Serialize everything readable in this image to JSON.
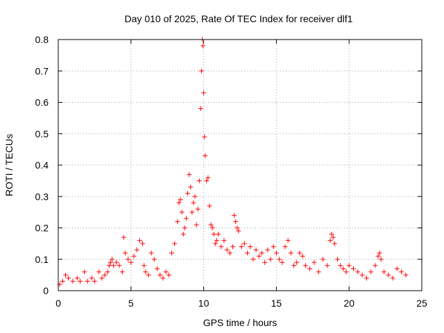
{
  "chart_data": {
    "type": "scatter",
    "title": "Day 010 of 2025, Rate Of TEC Index for receiver dlf1",
    "xlabel": "GPS time / hours",
    "ylabel": "ROTI / TECUs",
    "xlim": [
      0,
      25
    ],
    "ylim": [
      0,
      0.8
    ],
    "xticks": [
      "0",
      "5",
      "10",
      "15",
      "20",
      "25"
    ],
    "yticks": [
      "0",
      "0.1",
      "0.2",
      "0.3",
      "0.4",
      "0.5",
      "0.6",
      "0.7",
      "0.8"
    ],
    "grid": true,
    "marker": "plus",
    "marker_color": "#ff0000",
    "series": [
      {
        "x": [
          0.1,
          0.3,
          0.5,
          0.7,
          1.0,
          1.3,
          1.5,
          1.8,
          2.0,
          2.3,
          2.5,
          2.8,
          3.0,
          3.2,
          3.4,
          3.5,
          3.6,
          3.7,
          3.8,
          4.0,
          4.2,
          4.4,
          4.5,
          4.6,
          4.8,
          5.0,
          5.2,
          5.4,
          5.6,
          5.8,
          5.9,
          6.0,
          6.2,
          6.4,
          6.6,
          6.8,
          7.0,
          7.2,
          7.4,
          7.6,
          7.8,
          8.0,
          8.2,
          8.3,
          8.4,
          8.5,
          8.6,
          8.7,
          8.8,
          8.9,
          9.0,
          9.1,
          9.2,
          9.3,
          9.4,
          9.5,
          9.6,
          9.7,
          9.8,
          9.85,
          9.9,
          9.95,
          10.0,
          10.05,
          10.1,
          10.2,
          10.3,
          10.4,
          10.5,
          10.6,
          10.7,
          10.8,
          10.9,
          11.0,
          11.2,
          11.4,
          11.6,
          11.8,
          12.0,
          12.1,
          12.2,
          12.3,
          12.4,
          12.6,
          12.8,
          13.0,
          13.2,
          13.4,
          13.6,
          13.8,
          14.0,
          14.2,
          14.4,
          14.6,
          14.8,
          15.0,
          15.2,
          15.4,
          15.6,
          15.8,
          16.0,
          16.2,
          16.4,
          16.6,
          16.8,
          17.0,
          17.3,
          17.6,
          17.9,
          18.2,
          18.5,
          18.7,
          18.8,
          18.9,
          19.0,
          19.2,
          19.4,
          19.6,
          19.8,
          20.0,
          20.3,
          20.6,
          20.9,
          21.2,
          21.5,
          21.8,
          22.0,
          22.1,
          22.2,
          22.4,
          22.7,
          23.0,
          23.3,
          23.6,
          23.9
        ],
        "y": [
          0.02,
          0.03,
          0.05,
          0.04,
          0.03,
          0.04,
          0.03,
          0.06,
          0.03,
          0.04,
          0.03,
          0.06,
          0.04,
          0.05,
          0.06,
          0.08,
          0.09,
          0.1,
          0.08,
          0.09,
          0.08,
          0.06,
          0.17,
          0.12,
          0.1,
          0.09,
          0.11,
          0.13,
          0.16,
          0.15,
          0.08,
          0.06,
          0.05,
          0.12,
          0.1,
          0.07,
          0.05,
          0.04,
          0.06,
          0.05,
          0.12,
          0.15,
          0.22,
          0.28,
          0.29,
          0.25,
          0.18,
          0.2,
          0.23,
          0.31,
          0.37,
          0.33,
          0.25,
          0.28,
          0.3,
          0.21,
          0.26,
          0.35,
          0.58,
          0.7,
          0.8,
          0.78,
          0.63,
          0.49,
          0.43,
          0.35,
          0.36,
          0.27,
          0.21,
          0.2,
          0.18,
          0.15,
          0.16,
          0.18,
          0.14,
          0.16,
          0.13,
          0.12,
          0.14,
          0.24,
          0.22,
          0.2,
          0.19,
          0.14,
          0.15,
          0.12,
          0.14,
          0.1,
          0.13,
          0.11,
          0.12,
          0.09,
          0.13,
          0.1,
          0.14,
          0.12,
          0.1,
          0.09,
          0.14,
          0.16,
          0.12,
          0.08,
          0.09,
          0.12,
          0.11,
          0.08,
          0.07,
          0.09,
          0.06,
          0.1,
          0.08,
          0.16,
          0.18,
          0.17,
          0.15,
          0.1,
          0.08,
          0.07,
          0.06,
          0.08,
          0.07,
          0.06,
          0.05,
          0.04,
          0.06,
          0.08,
          0.11,
          0.12,
          0.1,
          0.06,
          0.05,
          0.04,
          0.07,
          0.06,
          0.05
        ]
      }
    ]
  }
}
